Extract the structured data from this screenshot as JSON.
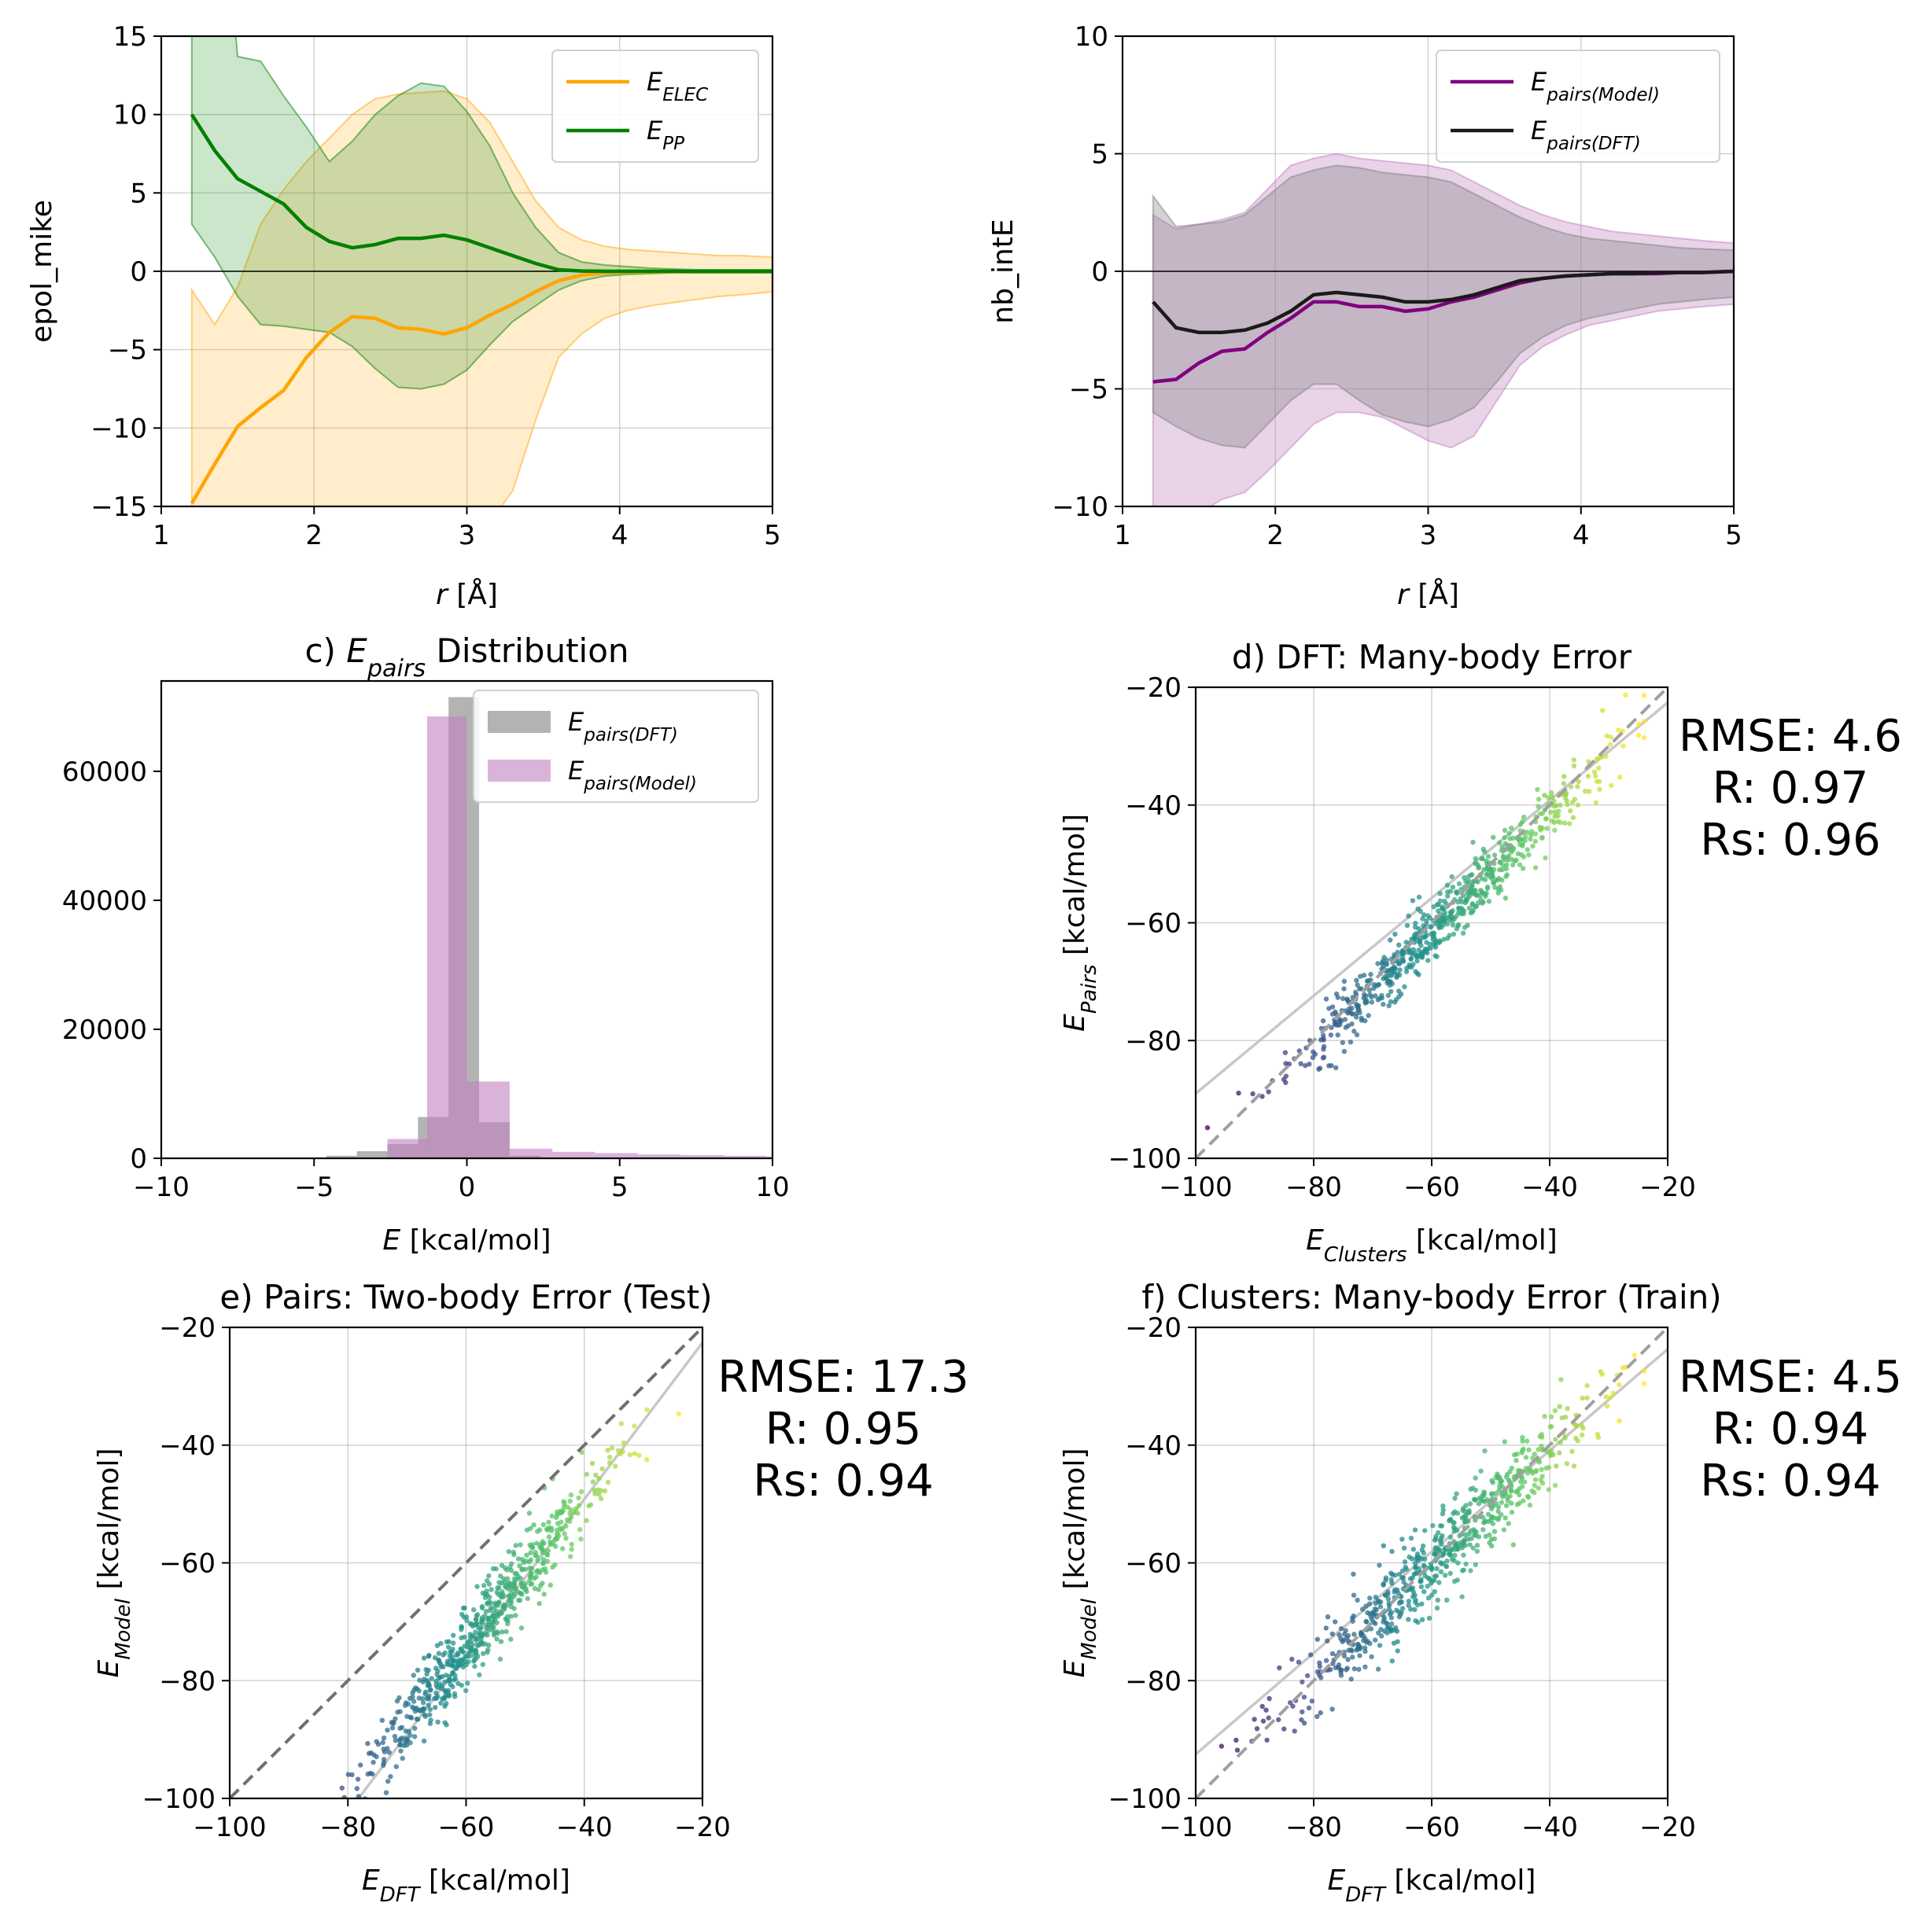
{
  "chart_data": [
    {
      "id": "a",
      "type": "line",
      "title": "",
      "xlabel_main": "r",
      "xlabel_unit": " [Å]",
      "ylabel": "epol_mike",
      "xlim": [
        1,
        5
      ],
      "ylim": [
        -15,
        15
      ],
      "xticks": [
        1,
        2,
        3,
        4,
        5
      ],
      "yticks": [
        -15,
        -10,
        -5,
        0,
        5,
        10,
        15
      ],
      "x": [
        1.2,
        1.35,
        1.5,
        1.65,
        1.8,
        1.95,
        2.1,
        2.25,
        2.4,
        2.55,
        2.7,
        2.85,
        3.0,
        3.15,
        3.3,
        3.45,
        3.6,
        3.75,
        3.9,
        4.05,
        4.2,
        4.35,
        4.5,
        4.65,
        4.8,
        5.0
      ],
      "series": [
        {
          "name_main": "E",
          "name_sub": "ELEC",
          "color": "#ffa500",
          "values": [
            -14.8,
            -12.3,
            -9.9,
            -8.7,
            -7.6,
            -5.5,
            -3.9,
            -2.9,
            -3.0,
            -3.6,
            -3.7,
            -4.0,
            -3.6,
            -2.8,
            -2.1,
            -1.3,
            -0.6,
            -0.25,
            -0.1,
            -0.05,
            -0.03,
            -0.02,
            -0.01,
            -0.01,
            -0.01,
            0
          ],
          "upper": [
            -1.2,
            -3.4,
            -1.0,
            3.0,
            5.2,
            7.0,
            8.5,
            10.0,
            11.0,
            11.3,
            11.4,
            11.5,
            11.0,
            9.5,
            7.0,
            4.5,
            2.8,
            2.0,
            1.6,
            1.4,
            1.3,
            1.2,
            1.1,
            1.0,
            1.0,
            0.9
          ],
          "lower": [
            -30,
            -30,
            -30,
            -30,
            -30,
            -30,
            -30,
            -30,
            -30,
            -30,
            -30,
            -30,
            -30,
            -16,
            -14,
            -9.5,
            -5.5,
            -4.0,
            -3.0,
            -2.5,
            -2.2,
            -2.0,
            -1.8,
            -1.6,
            -1.5,
            -1.3
          ]
        },
        {
          "name_main": "E",
          "name_sub": "PP",
          "color": "#008000",
          "values": [
            10.0,
            7.7,
            5.9,
            5.1,
            4.3,
            2.8,
            1.9,
            1.5,
            1.7,
            2.1,
            2.1,
            2.3,
            2.0,
            1.5,
            1.0,
            0.5,
            0.1,
            0.02,
            0.0,
            0.0,
            0.0,
            0.0,
            0.0,
            0.0,
            0.0,
            0.0
          ],
          "upper": [
            30,
            30,
            13.7,
            13.4,
            11.2,
            9.2,
            7.0,
            8.3,
            10.0,
            11.2,
            12.0,
            11.8,
            10.2,
            8.0,
            5.0,
            2.8,
            1.2,
            0.6,
            0.4,
            0.3,
            0.2,
            0.15,
            0.1,
            0.1,
            0.1,
            0.1
          ],
          "lower": [
            3.0,
            0.9,
            -1.6,
            -3.4,
            -3.5,
            -3.7,
            -3.9,
            -4.8,
            -6.2,
            -7.4,
            -7.5,
            -7.2,
            -6.3,
            -4.7,
            -3.2,
            -2.2,
            -1.2,
            -0.6,
            -0.3,
            -0.2,
            -0.15,
            -0.1,
            -0.1,
            -0.1,
            -0.1,
            -0.1
          ]
        }
      ],
      "legend": "upper right",
      "grid": true,
      "zero_line": true
    },
    {
      "id": "b",
      "type": "line",
      "title": "",
      "xlabel_main": "r",
      "xlabel_unit": " [Å]",
      "ylabel": "nb_intE",
      "xlim": [
        1,
        5
      ],
      "ylim": [
        -10,
        10
      ],
      "xticks": [
        1,
        2,
        3,
        4,
        5
      ],
      "yticks": [
        -10,
        -5,
        0,
        5,
        10
      ],
      "x": [
        1.2,
        1.35,
        1.5,
        1.65,
        1.8,
        1.95,
        2.1,
        2.25,
        2.4,
        2.55,
        2.7,
        2.85,
        3.0,
        3.15,
        3.3,
        3.45,
        3.6,
        3.75,
        3.9,
        4.05,
        4.2,
        4.35,
        4.5,
        4.65,
        4.8,
        5.0
      ],
      "series": [
        {
          "name_main": "E",
          "name_sub": "pairs(Model)",
          "color": "#800080",
          "fill": "#bf80bf",
          "values": [
            -4.7,
            -4.6,
            -3.9,
            -3.4,
            -3.3,
            -2.6,
            -2.0,
            -1.3,
            -1.3,
            -1.5,
            -1.5,
            -1.7,
            -1.6,
            -1.3,
            -1.1,
            -0.8,
            -0.5,
            -0.3,
            -0.2,
            -0.15,
            -0.1,
            -0.1,
            -0.1,
            -0.05,
            -0.05,
            0
          ],
          "upper": [
            2.4,
            1.8,
            2.0,
            2.2,
            2.5,
            3.5,
            4.5,
            4.8,
            5.0,
            4.8,
            4.7,
            4.6,
            4.5,
            4.3,
            3.8,
            3.3,
            2.8,
            2.4,
            2.1,
            1.9,
            1.7,
            1.6,
            1.5,
            1.4,
            1.3,
            1.2
          ],
          "lower": [
            -10.5,
            -10.5,
            -10.3,
            -9.7,
            -9.4,
            -8.5,
            -7.5,
            -6.5,
            -6.0,
            -6.0,
            -6.2,
            -6.7,
            -7.2,
            -7.5,
            -7.0,
            -5.5,
            -4.0,
            -3.2,
            -2.7,
            -2.3,
            -2.1,
            -1.9,
            -1.7,
            -1.6,
            -1.5,
            -1.4
          ]
        },
        {
          "name_main": "E",
          "name_sub": "pairs(DFT)",
          "color": "#1a1a1a",
          "fill": "#808080",
          "values": [
            -1.3,
            -2.4,
            -2.6,
            -2.6,
            -2.5,
            -2.2,
            -1.7,
            -1.0,
            -0.9,
            -1.0,
            -1.1,
            -1.3,
            -1.3,
            -1.2,
            -1.0,
            -0.7,
            -0.4,
            -0.3,
            -0.2,
            -0.15,
            -0.1,
            -0.1,
            -0.05,
            -0.05,
            -0.05,
            0
          ],
          "upper": [
            3.2,
            1.9,
            2.0,
            2.1,
            2.4,
            3.2,
            4.0,
            4.3,
            4.5,
            4.4,
            4.2,
            4.1,
            4.0,
            3.8,
            3.3,
            2.8,
            2.3,
            1.9,
            1.6,
            1.4,
            1.3,
            1.2,
            1.1,
            1.0,
            0.95,
            0.9
          ],
          "lower": [
            -6.0,
            -6.6,
            -7.1,
            -7.4,
            -7.5,
            -6.5,
            -5.5,
            -4.8,
            -4.8,
            -5.5,
            -6.1,
            -6.4,
            -6.6,
            -6.3,
            -5.8,
            -4.7,
            -3.5,
            -2.8,
            -2.3,
            -2.0,
            -1.8,
            -1.6,
            -1.4,
            -1.3,
            -1.2,
            -1.1
          ]
        }
      ],
      "legend": "upper right",
      "grid": true,
      "zero_line": true
    },
    {
      "id": "c",
      "type": "bar",
      "title_prefix": "c) ",
      "title_main": "E",
      "title_sub": "pairs",
      "title_suffix": " Distribution",
      "xlabel_main": "E",
      "xlabel_unit": " [kcal/mol]",
      "ylabel": "",
      "xlim": [
        -10,
        10
      ],
      "ylim": [
        0,
        74000
      ],
      "xticks": [
        -10,
        -5,
        0,
        5,
        10
      ],
      "yticks": [
        0,
        20000,
        40000,
        60000
      ],
      "series": [
        {
          "name_main": "E",
          "name_sub": "pairs(DFT)",
          "color": "#808080",
          "alpha": 0.6,
          "bins": [
            [
              -5.6,
              -4.6,
              100
            ],
            [
              -4.6,
              -3.6,
              400
            ],
            [
              -3.6,
              -2.6,
              1100
            ],
            [
              -2.6,
              -1.6,
              2200
            ],
            [
              -1.6,
              -0.6,
              6400
            ],
            [
              -0.6,
              0.4,
              71500
            ],
            [
              0.4,
              1.4,
              5600
            ],
            [
              1.4,
              2.4,
              400
            ],
            [
              2.4,
              3.4,
              100
            ]
          ]
        },
        {
          "name_main": "E",
          "name_sub": "pairs(Model)",
          "color": "#bf80bf",
          "alpha": 0.6,
          "bins": [
            [
              -2.6,
              -1.3,
              3000
            ],
            [
              -1.3,
              0.0,
              68500
            ],
            [
              0.0,
              1.4,
              11900
            ],
            [
              1.4,
              2.8,
              1500
            ],
            [
              2.8,
              4.2,
              1000
            ],
            [
              4.2,
              5.6,
              800
            ],
            [
              5.6,
              7.0,
              600
            ],
            [
              7.0,
              8.4,
              500
            ],
            [
              8.4,
              9.8,
              400
            ],
            [
              9.8,
              11.2,
              300
            ]
          ]
        }
      ],
      "legend": "upper right",
      "grid": false
    },
    {
      "id": "d",
      "type": "scatter",
      "title": "d) DFT: Many-body Error",
      "xlabel_main": "E",
      "xlabel_sub": "Clusters",
      "xlabel_unit": " [kcal/mol]",
      "ylabel_main": "E",
      "ylabel_sub": "Pairs",
      "ylabel_unit": " [kcal/mol]",
      "xlim": [
        -100,
        -20
      ],
      "ylim": [
        -100,
        -20
      ],
      "xticks": [
        -100,
        -80,
        -60,
        -40,
        -20
      ],
      "yticks": [
        -100,
        -80,
        -60,
        -40,
        -20
      ],
      "fit": {
        "slope": 0.83,
        "intercept": -6.0
      },
      "cluster": {
        "x_center": -58,
        "x_spread": 13,
        "slope": 0.98,
        "intercept": -2.5,
        "noise": 2.6,
        "n": 650,
        "seed": 11
      },
      "stats": {
        "rmse": "RMSE: 4.6",
        "r": "R: 0.97",
        "rs": "Rs: 0.96"
      }
    },
    {
      "id": "e",
      "type": "scatter",
      "title": "e) Pairs: Two-body Error (Test)",
      "xlabel_main": "E",
      "xlabel_sub": "DFT",
      "xlabel_unit": " [kcal/mol]",
      "ylabel_main": "E",
      "ylabel_sub": "Model",
      "ylabel_unit": " [kcal/mol]",
      "xlim": [
        -100,
        -20
      ],
      "ylim": [
        -100,
        -20
      ],
      "xticks": [
        -100,
        -80,
        -60,
        -40,
        -20
      ],
      "yticks": [
        -100,
        -80,
        -60,
        -40,
        -20
      ],
      "fit": {
        "slope": 1.33,
        "intercept": 4.0
      },
      "cluster": {
        "x_center": -58,
        "x_spread": 10,
        "slope": 1.25,
        "intercept": 0.5,
        "noise": 3.2,
        "n": 650,
        "seed": 23
      },
      "stats": {
        "rmse": "RMSE: 17.3",
        "r": "R: 0.95",
        "rs": "Rs: 0.94"
      }
    },
    {
      "id": "f",
      "type": "scatter",
      "title": "f) Clusters: Many-body Error (Train)",
      "xlabel_main": "E",
      "xlabel_sub": "DFT",
      "xlabel_unit": " [kcal/mol]",
      "ylabel_main": "E",
      "ylabel_sub": "Model",
      "ylabel_unit": " [kcal/mol]",
      "xlim": [
        -100,
        -20
      ],
      "ylim": [
        -100,
        -20
      ],
      "xticks": [
        -100,
        -80,
        -60,
        -40,
        -20
      ],
      "yticks": [
        -100,
        -80,
        -60,
        -40,
        -20
      ],
      "fit": {
        "slope": 0.86,
        "intercept": -6.5
      },
      "cluster": {
        "x_center": -58,
        "x_spread": 13,
        "slope": 0.97,
        "intercept": -2.0,
        "noise": 3.6,
        "n": 650,
        "seed": 37
      },
      "stats": {
        "rmse": "RMSE: 4.5",
        "r": "R: 0.94",
        "rs": "Rs: 0.94"
      }
    }
  ]
}
